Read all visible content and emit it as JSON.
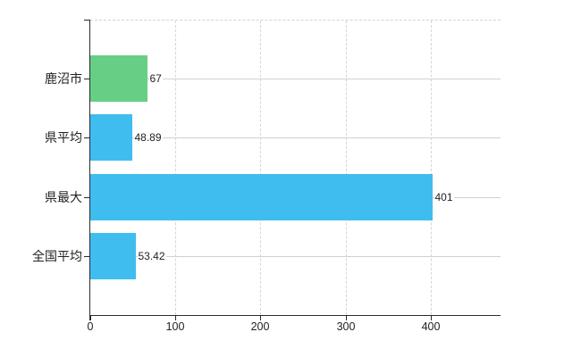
{
  "chart_data": {
    "type": "bar",
    "orientation": "horizontal",
    "title": "",
    "xlabel": "",
    "ylabel": "",
    "categories": [
      "鹿沼市",
      "県平均",
      "県最大",
      "全国平均"
    ],
    "values": [
      67,
      48.89,
      401,
      53.42
    ],
    "value_labels": [
      "67",
      "48.89",
      "401",
      "53.42"
    ],
    "series": [
      {
        "name": "",
        "values": [
          67,
          48.89,
          401,
          53.42
        ],
        "colors": [
          "#67CE85",
          "#3FBDEF",
          "#3FBDEF",
          "#3FBDEF"
        ]
      }
    ],
    "highlight_category": "鹿沼市",
    "highlight_color": "#67CE85",
    "default_bar_color": "#3FBDEF",
    "xlim": [
      0,
      481.2
    ],
    "xticks": [
      0,
      100,
      200,
      300,
      400
    ],
    "xtick_labels": [
      "0",
      "100",
      "200",
      "300",
      "400"
    ],
    "grid": {
      "vertical_style": "dashed",
      "horizontal_style": "solid",
      "top_border_style": "dashed"
    },
    "legend": "none",
    "colors": {
      "axis": "#2b2b2b",
      "text": "#222222",
      "h_gridline": "#ccd5c9",
      "v_gridline": "#d7d3da",
      "top_border": "#d4d4d4",
      "background": "#ffffff"
    }
  }
}
